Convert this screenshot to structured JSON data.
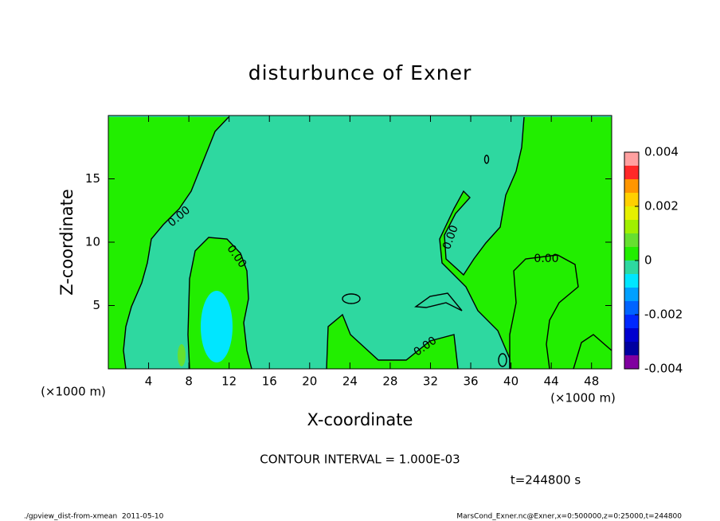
{
  "chart_data": {
    "type": "contour",
    "title": "disturbunce of Exner",
    "x_label": "X-coordinate",
    "y_label": "Z-coordinate",
    "x_unit": "(×1000 m)",
    "y_unit": "(×1000 m)",
    "xlim": [
      0,
      50
    ],
    "ylim": [
      0,
      20
    ],
    "xticks": [
      4,
      8,
      12,
      16,
      20,
      24,
      28,
      32,
      36,
      40,
      44,
      48
    ],
    "yticks": [
      5,
      10,
      15
    ],
    "regions": [
      {
        "value": -0.0002
      },
      {
        "value": 0.0003
      },
      {
        "value": 0.0003
      },
      {
        "value": 0.0003
      },
      {
        "value": 0.0003
      },
      {
        "value": -0.0007
      },
      {
        "value": 0.0007
      }
    ],
    "contour_level": 0,
    "contour_labels": [
      "0.00",
      "0.00",
      "0.00",
      "0.00",
      "0.00"
    ],
    "colorbar": {
      "lim": [
        -0.004,
        0.004
      ],
      "levels": [
        -0.004,
        -0.0035,
        -0.003,
        -0.0025,
        -0.002,
        -0.0015,
        -0.001,
        -0.0005,
        0,
        0.0005,
        0.001,
        0.0015,
        0.002,
        0.0025,
        0.003,
        0.0035,
        0.004
      ],
      "colors": [
        "#8000a0",
        "#0000a0",
        "#0000d0",
        "#0028ff",
        "#0064ff",
        "#00a0ff",
        "#00e6ff",
        "#2ed8a0",
        "#22ee00",
        "#66e030",
        "#a0f000",
        "#e6f000",
        "#ffd000",
        "#ff9600",
        "#ff2828",
        "#ffa0a0"
      ],
      "ticks": [
        -0.004,
        -0.002,
        0,
        0.002,
        0.004
      ]
    },
    "contour_interval": "CONTOUR INTERVAL = 1.000E-03",
    "time_label": "t=244800 s"
  },
  "footer": {
    "left": "./gpview_dist-from-xmean  2011-05-10",
    "right": "MarsCond_Exner.nc@Exner,x=0:500000,z=0:25000,t=244800"
  }
}
